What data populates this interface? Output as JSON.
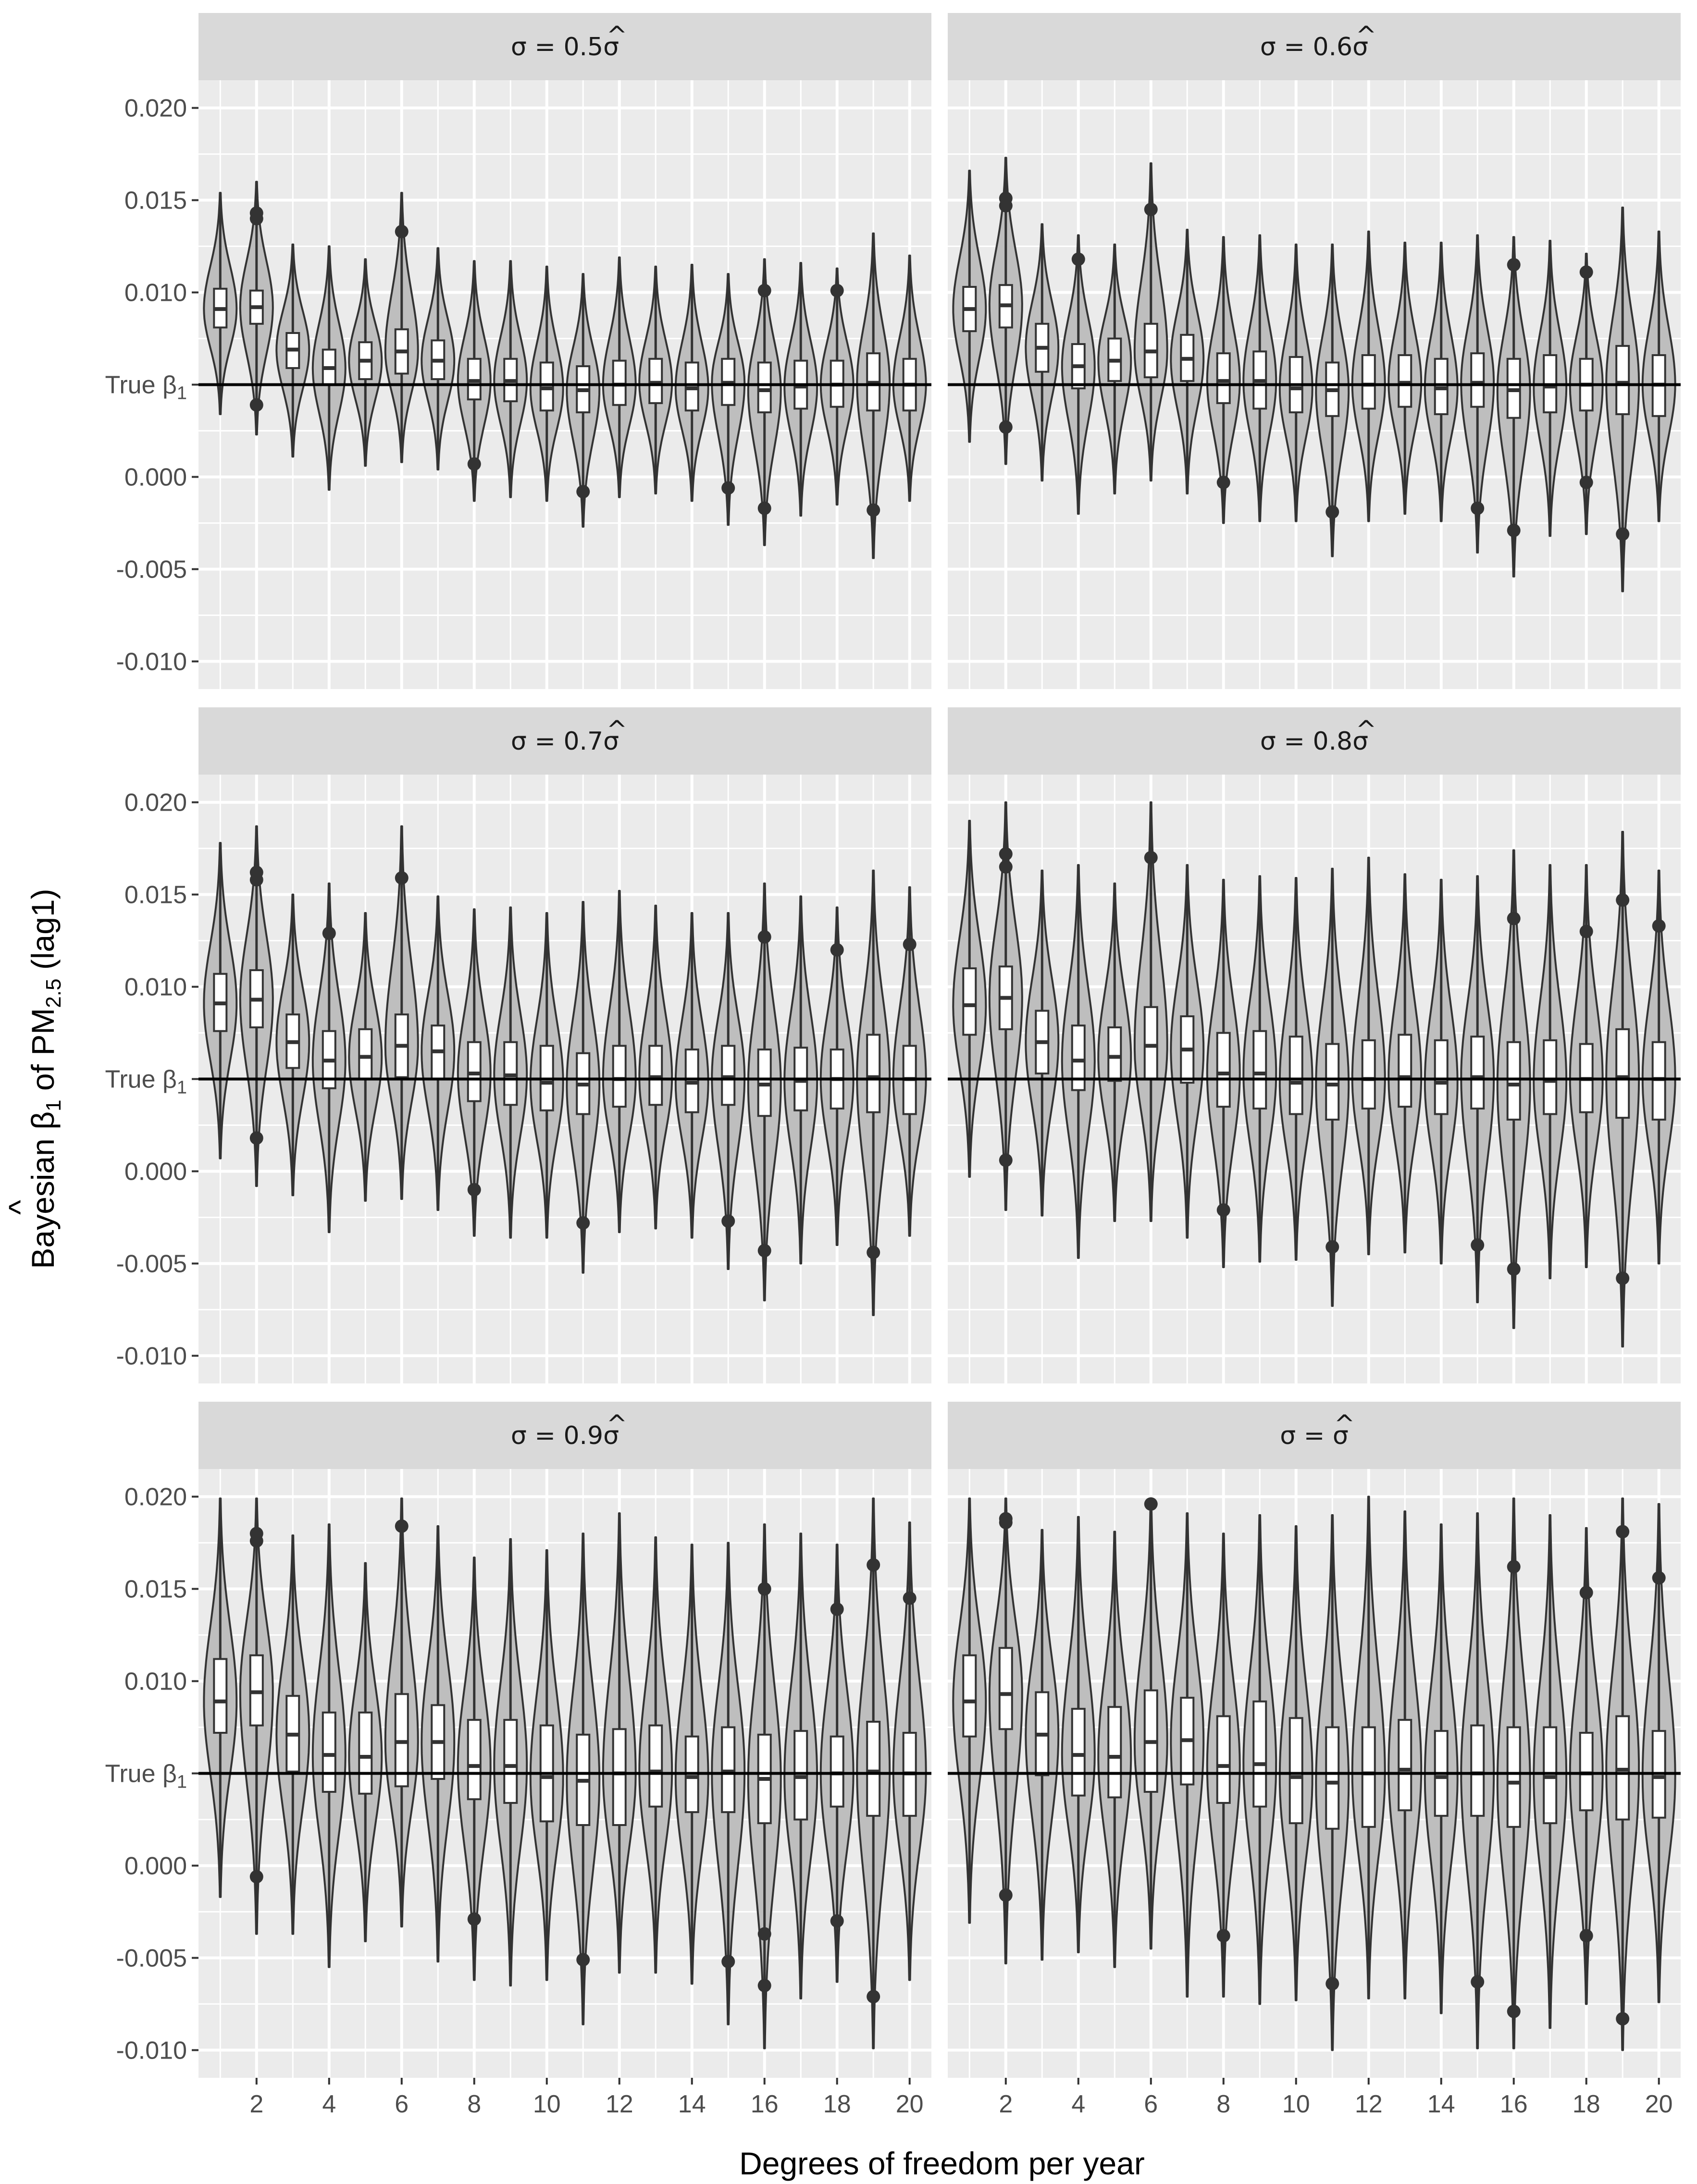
{
  "colors": {
    "panel_bg": "#ebebeb",
    "strip_bg": "#d9d9d9",
    "grid": "#ffffff",
    "violin_fill": "#bebebe",
    "outline": "#333333",
    "reference_line": "#000000"
  },
  "chart_data": {
    "type": "violin",
    "xlabel": "Degrees of freedom per year",
    "ylabel": {
      "prefix": "Bayesian ",
      "hat": "^",
      "beta": "β",
      "beta_sub": "1",
      "middle": " of PM",
      "pm_sub": "2.5",
      "suffix": " (lag1)"
    },
    "ylim": [
      -0.0115,
      0.0215
    ],
    "xlim": [
      0.4,
      20.6
    ],
    "x_ticks": [
      2,
      4,
      6,
      8,
      10,
      12,
      14,
      16,
      18,
      20
    ],
    "x_tick_labels": [
      "2",
      "4",
      "6",
      "8",
      "10",
      "12",
      "14",
      "16",
      "18",
      "20"
    ],
    "y_ticks": [
      -0.01,
      -0.005,
      0.0,
      0.005,
      0.01,
      0.015,
      0.02
    ],
    "y_tick_labels": [
      "-0.010",
      "-0.005",
      "0.000",
      "True β1",
      "0.010",
      "0.015",
      "0.020"
    ],
    "true_beta": 0.005,
    "true_beta_label": {
      "text": "True β",
      "sub": "1"
    },
    "df_values": [
      1,
      2,
      3,
      4,
      5,
      6,
      7,
      8,
      9,
      10,
      11,
      12,
      13,
      14,
      15,
      16,
      17,
      18,
      19,
      20
    ],
    "panels": [
      {
        "label": "σ = 0.5σ̂",
        "label_parts": {
          "sigma": "σ",
          "eq": " = ",
          "coef": "0.5",
          "sigma_hat": "σ",
          "hat": "^"
        },
        "medians": [
          0.0091,
          0.0092,
          0.0069,
          0.0059,
          0.0063,
          0.0068,
          0.0063,
          0.0052,
          0.0052,
          0.0048,
          0.0047,
          0.005,
          0.0051,
          0.0048,
          0.0051,
          0.0047,
          0.0049,
          0.005,
          0.0051,
          0.005
        ],
        "q1": [
          0.0081,
          0.0083,
          0.0059,
          0.005,
          0.0053,
          0.0056,
          0.0053,
          0.0042,
          0.0041,
          0.0036,
          0.0035,
          0.0039,
          0.004,
          0.0036,
          0.0039,
          0.0035,
          0.0037,
          0.0038,
          0.0036,
          0.0036
        ],
        "q3": [
          0.0102,
          0.0101,
          0.0078,
          0.0069,
          0.0073,
          0.008,
          0.0074,
          0.0064,
          0.0064,
          0.0062,
          0.006,
          0.0063,
          0.0064,
          0.0062,
          0.0064,
          0.0062,
          0.0063,
          0.0063,
          0.0067,
          0.0064
        ],
        "lower": [
          0.0034,
          0.0023,
          0.0011,
          -0.0007,
          0.0006,
          0.0008,
          0.0004,
          -0.0013,
          -0.0011,
          -0.0013,
          -0.0027,
          -0.0011,
          -0.0009,
          -0.0013,
          -0.0026,
          -0.0037,
          -0.0021,
          -0.0015,
          -0.0044,
          -0.0013
        ],
        "upper": [
          0.0154,
          0.016,
          0.0126,
          0.0125,
          0.0118,
          0.0154,
          0.0124,
          0.0117,
          0.0117,
          0.0114,
          0.011,
          0.0119,
          0.0114,
          0.0115,
          0.011,
          0.0118,
          0.0116,
          0.0113,
          0.0132,
          0.012
        ],
        "outliers": [
          [
            2,
            0.0143
          ],
          [
            2,
            0.014
          ],
          [
            2,
            0.0039
          ],
          [
            6,
            0.0133
          ],
          [
            8,
            0.0007
          ],
          [
            11,
            -0.0008
          ],
          [
            15,
            -0.0006
          ],
          [
            16,
            0.0101
          ],
          [
            16,
            -0.0017
          ],
          [
            18,
            0.0101
          ],
          [
            19,
            -0.0018
          ]
        ]
      },
      {
        "label": "σ = 0.6σ̂",
        "label_parts": {
          "sigma": "σ",
          "eq": " = ",
          "coef": "0.6",
          "sigma_hat": "σ",
          "hat": "^"
        },
        "medians": [
          0.0091,
          0.0093,
          0.007,
          0.006,
          0.0063,
          0.0068,
          0.0064,
          0.0052,
          0.0052,
          0.0048,
          0.0047,
          0.005,
          0.0051,
          0.0048,
          0.0051,
          0.0047,
          0.0049,
          0.005,
          0.0051,
          0.005
        ],
        "q1": [
          0.0079,
          0.0081,
          0.0057,
          0.0048,
          0.0052,
          0.0054,
          0.0052,
          0.004,
          0.0037,
          0.0035,
          0.0033,
          0.0037,
          0.0038,
          0.0034,
          0.0038,
          0.0032,
          0.0035,
          0.0036,
          0.0034,
          0.0033
        ],
        "q3": [
          0.0103,
          0.0104,
          0.0083,
          0.0072,
          0.0075,
          0.0083,
          0.0077,
          0.0067,
          0.0068,
          0.0065,
          0.0062,
          0.0066,
          0.0066,
          0.0064,
          0.0067,
          0.0064,
          0.0066,
          0.0064,
          0.0071,
          0.0066
        ],
        "lower": [
          0.0019,
          0.0007,
          -0.0002,
          -0.002,
          -0.0009,
          -0.0002,
          -0.0009,
          -0.0025,
          -0.0024,
          -0.0024,
          -0.0043,
          -0.0024,
          -0.002,
          -0.0024,
          -0.0041,
          -0.0054,
          -0.0032,
          -0.0031,
          -0.0062,
          -0.0024
        ],
        "upper": [
          0.0166,
          0.0173,
          0.0137,
          0.0131,
          0.0126,
          0.017,
          0.0134,
          0.013,
          0.0131,
          0.0126,
          0.0126,
          0.0133,
          0.0127,
          0.0127,
          0.0131,
          0.013,
          0.0128,
          0.0121,
          0.0146,
          0.0133
        ],
        "outliers": [
          [
            2,
            0.0151
          ],
          [
            2,
            0.0147
          ],
          [
            2,
            0.0027
          ],
          [
            4,
            0.0118
          ],
          [
            6,
            0.0145
          ],
          [
            8,
            -0.0003
          ],
          [
            11,
            -0.0019
          ],
          [
            15,
            -0.0017
          ],
          [
            16,
            0.0115
          ],
          [
            16,
            -0.0029
          ],
          [
            18,
            0.0111
          ],
          [
            18,
            -0.0003
          ],
          [
            19,
            -0.0031
          ]
        ]
      },
      {
        "label": "σ = 0.7σ̂",
        "label_parts": {
          "sigma": "σ",
          "eq": " = ",
          "coef": "0.7",
          "sigma_hat": "σ",
          "hat": "^"
        },
        "medians": [
          0.0091,
          0.0093,
          0.007,
          0.006,
          0.0062,
          0.0068,
          0.0065,
          0.0053,
          0.0052,
          0.0048,
          0.0047,
          0.005,
          0.0051,
          0.0048,
          0.0051,
          0.0047,
          0.0049,
          0.005,
          0.0051,
          0.005
        ],
        "q1": [
          0.0076,
          0.0078,
          0.0056,
          0.0045,
          0.005,
          0.0051,
          0.005,
          0.0038,
          0.0036,
          0.0033,
          0.0031,
          0.0035,
          0.0036,
          0.0032,
          0.0036,
          0.003,
          0.0033,
          0.0034,
          0.0032,
          0.0031
        ],
        "q3": [
          0.0107,
          0.0109,
          0.0085,
          0.0076,
          0.0077,
          0.0085,
          0.0079,
          0.007,
          0.007,
          0.0068,
          0.0064,
          0.0068,
          0.0068,
          0.0066,
          0.0068,
          0.0066,
          0.0067,
          0.0066,
          0.0074,
          0.0068
        ],
        "lower": [
          0.0007,
          -0.0008,
          -0.0013,
          -0.0033,
          -0.0016,
          -0.0015,
          -0.0021,
          -0.0035,
          -0.0036,
          -0.0036,
          -0.0055,
          -0.0033,
          -0.0031,
          -0.0036,
          -0.0053,
          -0.007,
          -0.005,
          -0.004,
          -0.0078,
          -0.0035
        ],
        "upper": [
          0.0178,
          0.0187,
          0.015,
          0.0156,
          0.014,
          0.0187,
          0.0149,
          0.0142,
          0.0143,
          0.014,
          0.0146,
          0.0152,
          0.0144,
          0.014,
          0.014,
          0.0156,
          0.0149,
          0.0143,
          0.0163,
          0.0154
        ],
        "outliers": [
          [
            2,
            0.0162
          ],
          [
            2,
            0.0158
          ],
          [
            2,
            0.0018
          ],
          [
            4,
            0.0129
          ],
          [
            6,
            0.0159
          ],
          [
            8,
            -0.001
          ],
          [
            11,
            -0.0028
          ],
          [
            15,
            -0.0027
          ],
          [
            16,
            0.0127
          ],
          [
            16,
            -0.0043
          ],
          [
            18,
            0.012
          ],
          [
            19,
            -0.0044
          ],
          [
            20,
            0.0123
          ]
        ]
      },
      {
        "label": "σ = 0.8σ̂",
        "label_parts": {
          "sigma": "σ",
          "eq": " = ",
          "coef": "0.8",
          "sigma_hat": "σ",
          "hat": "^"
        },
        "medians": [
          0.009,
          0.0094,
          0.007,
          0.006,
          0.0062,
          0.0068,
          0.0066,
          0.0053,
          0.0053,
          0.0048,
          0.0047,
          0.005,
          0.0051,
          0.0048,
          0.0051,
          0.0047,
          0.0049,
          0.005,
          0.0051,
          0.005
        ],
        "q1": [
          0.0074,
          0.0077,
          0.0053,
          0.0044,
          0.0049,
          0.005,
          0.0048,
          0.0035,
          0.0034,
          0.0031,
          0.0028,
          0.0034,
          0.0035,
          0.0031,
          0.0034,
          0.0028,
          0.0031,
          0.0032,
          0.0029,
          0.0028
        ],
        "q3": [
          0.011,
          0.0111,
          0.0087,
          0.0079,
          0.0078,
          0.0089,
          0.0084,
          0.0075,
          0.0076,
          0.0073,
          0.0069,
          0.0071,
          0.0074,
          0.0071,
          0.0073,
          0.007,
          0.0071,
          0.0069,
          0.0077,
          0.007
        ],
        "lower": [
          -0.0003,
          -0.0021,
          -0.0024,
          -0.0047,
          -0.0027,
          -0.0027,
          -0.0036,
          -0.0052,
          -0.0049,
          -0.0048,
          -0.0073,
          -0.0045,
          -0.0044,
          -0.005,
          -0.0071,
          -0.0085,
          -0.0058,
          -0.0052,
          -0.0095,
          -0.005
        ],
        "upper": [
          0.019,
          0.02,
          0.0163,
          0.0166,
          0.0156,
          0.02,
          0.0166,
          0.0158,
          0.016,
          0.0159,
          0.0164,
          0.017,
          0.0161,
          0.0158,
          0.016,
          0.0174,
          0.0166,
          0.0166,
          0.0184,
          0.0163
        ],
        "outliers": [
          [
            2,
            0.0172
          ],
          [
            2,
            0.0165
          ],
          [
            2,
            0.0006
          ],
          [
            6,
            0.017
          ],
          [
            8,
            -0.0021
          ],
          [
            11,
            -0.0041
          ],
          [
            15,
            -0.004
          ],
          [
            16,
            0.0137
          ],
          [
            16,
            -0.0053
          ],
          [
            18,
            0.013
          ],
          [
            19,
            0.0147
          ],
          [
            19,
            -0.0058
          ],
          [
            20,
            0.0133
          ]
        ]
      },
      {
        "label": "σ = 0.9σ̂",
        "label_parts": {
          "sigma": "σ",
          "eq": " = ",
          "coef": "0.9",
          "sigma_hat": "σ",
          "hat": "^"
        },
        "medians": [
          0.0089,
          0.0094,
          0.0071,
          0.006,
          0.0059,
          0.0067,
          0.0067,
          0.0054,
          0.0054,
          0.0048,
          0.0046,
          0.005,
          0.0051,
          0.0048,
          0.0051,
          0.0047,
          0.0048,
          0.005,
          0.0051,
          0.005
        ],
        "q1": [
          0.0072,
          0.0076,
          0.0051,
          0.004,
          0.0039,
          0.0043,
          0.0047,
          0.0036,
          0.0034,
          0.0024,
          0.0022,
          0.0022,
          0.0032,
          0.0029,
          0.0029,
          0.0023,
          0.0025,
          0.0032,
          0.0027,
          0.0027
        ],
        "q3": [
          0.0112,
          0.0114,
          0.0092,
          0.0083,
          0.0083,
          0.0093,
          0.0087,
          0.0079,
          0.0079,
          0.0076,
          0.0071,
          0.0074,
          0.0076,
          0.007,
          0.0075,
          0.0071,
          0.0073,
          0.007,
          0.0078,
          0.0072
        ],
        "lower": [
          -0.0017,
          -0.0037,
          -0.0037,
          -0.0055,
          -0.0041,
          -0.0033,
          -0.0052,
          -0.0062,
          -0.0065,
          -0.0062,
          -0.0086,
          -0.0058,
          -0.0058,
          -0.0064,
          -0.0086,
          -0.0099,
          -0.0072,
          -0.0063,
          -0.0099,
          -0.0062
        ],
        "upper": [
          0.0199,
          0.0199,
          0.0179,
          0.0185,
          0.0164,
          0.0199,
          0.0184,
          0.0167,
          0.0177,
          0.0171,
          0.018,
          0.0191,
          0.0178,
          0.0174,
          0.0175,
          0.0185,
          0.018,
          0.0174,
          0.0199,
          0.0186
        ],
        "outliers": [
          [
            2,
            0.018
          ],
          [
            2,
            0.0176
          ],
          [
            2,
            -0.0006
          ],
          [
            6,
            0.0184
          ],
          [
            8,
            -0.0029
          ],
          [
            11,
            -0.0051
          ],
          [
            15,
            -0.0052
          ],
          [
            16,
            0.015
          ],
          [
            16,
            -0.0037
          ],
          [
            16,
            -0.0065
          ],
          [
            18,
            0.0139
          ],
          [
            18,
            -0.003
          ],
          [
            19,
            0.0163
          ],
          [
            19,
            -0.0071
          ],
          [
            20,
            0.0145
          ]
        ]
      },
      {
        "label": "σ = σ̂",
        "label_parts": {
          "sigma": "σ",
          "eq": " = ",
          "coef": "",
          "sigma_hat": "σ",
          "hat": "^"
        },
        "medians": [
          0.0089,
          0.0093,
          0.0071,
          0.006,
          0.0059,
          0.0067,
          0.0068,
          0.0054,
          0.0055,
          0.0048,
          0.0045,
          0.005,
          0.0052,
          0.0048,
          0.005,
          0.0045,
          0.0048,
          0.005,
          0.0052,
          0.0048
        ],
        "q1": [
          0.007,
          0.0074,
          0.0049,
          0.0038,
          0.0037,
          0.004,
          0.0044,
          0.0034,
          0.0032,
          0.0023,
          0.002,
          0.0021,
          0.003,
          0.0027,
          0.0027,
          0.0021,
          0.0023,
          0.003,
          0.0025,
          0.0026
        ],
        "q3": [
          0.0114,
          0.0118,
          0.0094,
          0.0085,
          0.0086,
          0.0095,
          0.0091,
          0.0081,
          0.0089,
          0.008,
          0.0075,
          0.0075,
          0.0079,
          0.0073,
          0.0076,
          0.0075,
          0.0075,
          0.0072,
          0.0081,
          0.0073
        ],
        "lower": [
          -0.0031,
          -0.0053,
          -0.0051,
          -0.0047,
          -0.0055,
          -0.0045,
          -0.0071,
          -0.0071,
          -0.0075,
          -0.0073,
          -0.01,
          -0.0072,
          -0.0072,
          -0.008,
          -0.0099,
          -0.0099,
          -0.0088,
          -0.0075,
          -0.01,
          -0.0074
        ],
        "upper": [
          0.0199,
          0.0199,
          0.0182,
          0.0189,
          0.0181,
          0.0199,
          0.0191,
          0.018,
          0.019,
          0.0184,
          0.019,
          0.02,
          0.0192,
          0.0185,
          0.0191,
          0.0199,
          0.019,
          0.0183,
          0.0199,
          0.0196
        ],
        "outliers": [
          [
            2,
            0.0188
          ],
          [
            2,
            0.0186
          ],
          [
            2,
            -0.0016
          ],
          [
            6,
            0.0196
          ],
          [
            8,
            -0.0038
          ],
          [
            11,
            -0.0064
          ],
          [
            15,
            -0.0063
          ],
          [
            16,
            0.0162
          ],
          [
            16,
            -0.0079
          ],
          [
            18,
            0.0148
          ],
          [
            18,
            -0.0038
          ],
          [
            19,
            0.0181
          ],
          [
            19,
            -0.0083
          ],
          [
            20,
            0.0156
          ]
        ]
      }
    ]
  }
}
